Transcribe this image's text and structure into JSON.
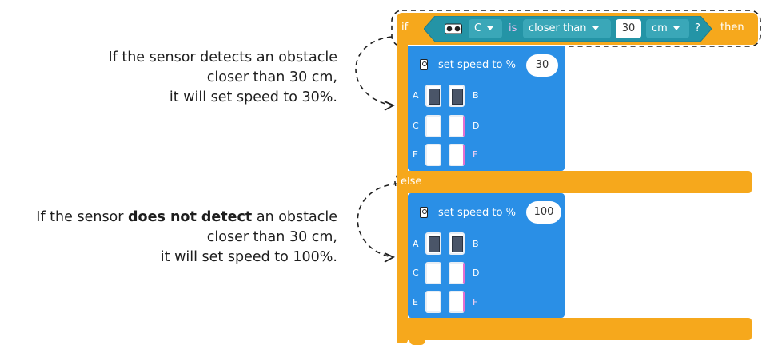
{
  "annotations": {
    "top": {
      "line1": "If the sensor detects an obstacle",
      "line2": "closer than 30 cm,",
      "line3": "it will set speed to 30%."
    },
    "bottom": {
      "line1_pre": "If the sensor ",
      "line1_bold": "does not detect",
      "line1_post": " an obstacle",
      "line2": "closer than 30 cm,",
      "line3": "it will set speed to 100%."
    }
  },
  "if_block": {
    "if_label": "if",
    "sensor_port": "C",
    "is_label": "is",
    "comparison": "closer than",
    "distance": "30",
    "unit": "cm",
    "question": "?",
    "then_label": "then",
    "else_label": "else"
  },
  "speed_blocks": [
    {
      "label": "set speed to %",
      "value": "30",
      "ports": [
        "A",
        "B",
        "C",
        "D",
        "E",
        "F"
      ],
      "active_motors": [
        "A",
        "B"
      ]
    },
    {
      "label": "set speed to %",
      "value": "100",
      "ports": [
        "A",
        "B",
        "C",
        "D",
        "E",
        "F"
      ],
      "active_motors": [
        "A",
        "B"
      ]
    }
  ],
  "colors": {
    "control_orange": "#f6a81c",
    "motor_blue": "#2a8fe6",
    "sensor_teal": "#2494a6",
    "annotation_text": "#1e1e1e"
  },
  "icons": [
    "distance-sensor-icon",
    "robot-icon",
    "dashed-arrow-icon"
  ]
}
